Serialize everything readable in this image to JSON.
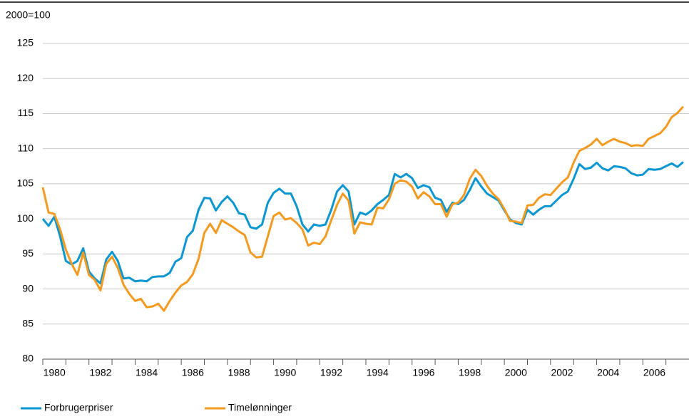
{
  "chart_data": {
    "type": "line",
    "y_label": "2000=100",
    "x": [
      1980,
      1980.25,
      1980.5,
      1980.75,
      1981,
      1981.25,
      1981.5,
      1981.75,
      1982,
      1982.25,
      1982.5,
      1982.75,
      1983,
      1983.25,
      1983.5,
      1983.75,
      1984,
      1984.25,
      1984.5,
      1984.75,
      1985,
      1985.25,
      1985.5,
      1985.75,
      1986,
      1986.25,
      1986.5,
      1986.75,
      1987,
      1987.25,
      1987.5,
      1987.75,
      1988,
      1988.25,
      1988.5,
      1988.75,
      1989,
      1989.25,
      1989.5,
      1989.75,
      1990,
      1990.25,
      1990.5,
      1990.75,
      1991,
      1991.25,
      1991.5,
      1991.75,
      1992,
      1992.25,
      1992.5,
      1992.75,
      1993,
      1993.25,
      1993.5,
      1993.75,
      1994,
      1994.25,
      1994.5,
      1994.75,
      1995,
      1995.25,
      1995.5,
      1995.75,
      1996,
      1996.25,
      1996.5,
      1996.75,
      1997,
      1997.25,
      1997.5,
      1997.75,
      1998,
      1998.25,
      1998.5,
      1998.75,
      1999,
      1999.25,
      1999.5,
      1999.75,
      2000,
      2000.25,
      2000.5,
      2000.75,
      2001,
      2001.25,
      2001.5,
      2001.75,
      2002,
      2002.25,
      2002.5,
      2002.75,
      2003,
      2003.25,
      2003.5,
      2003.75,
      2004,
      2004.25,
      2004.5,
      2004.75,
      2005,
      2005.25,
      2005.5,
      2005.75,
      2006,
      2006.25,
      2006.5,
      2006.75,
      2007,
      2007.25,
      2007.5,
      2007.75
    ],
    "series": [
      {
        "name": "Forbrugerpriser",
        "color": "#0a96d0",
        "values": [
          100,
          99,
          100.3,
          97.5,
          94,
          93.5,
          94,
          95.8,
          92.5,
          91.5,
          90.8,
          94.2,
          95.3,
          94,
          91.5,
          91.6,
          91.1,
          91.2,
          91.1,
          91.7,
          91.8,
          91.8,
          92.3,
          93.9,
          94.4,
          97.4,
          98.3,
          101.3,
          103,
          102.9,
          101.2,
          102.4,
          103.2,
          102.3,
          100.8,
          100.6,
          98.8,
          98.6,
          99.2,
          102.3,
          103.7,
          104.3,
          103.6,
          103.6,
          101.8,
          99.2,
          98.2,
          99.2,
          99,
          99.2,
          101.3,
          103.9,
          104.8,
          103.9,
          99.2,
          100.9,
          100.6,
          101.2,
          102.1,
          102.7,
          103.4,
          106.4,
          105.9,
          106.4,
          105.8,
          104.4,
          104.8,
          104.5,
          103,
          102.7,
          101,
          102.3,
          102.1,
          102.7,
          104.1,
          105.8,
          104.6,
          103.6,
          103.1,
          102.6,
          101.2,
          99.9,
          99.4,
          99.2,
          101.3,
          100.6,
          101.3,
          101.8,
          101.8,
          102.6,
          103.4,
          103.9,
          105.7,
          107.8,
          107.1,
          107.3,
          108,
          107.2,
          106.9,
          107.5,
          107.4,
          107.2,
          106.5,
          106.2,
          106.3,
          107.1,
          107,
          107.1,
          107.5,
          107.9,
          107.4,
          108.1
        ]
      },
      {
        "name": "Timelønninger",
        "color": "#f39a21",
        "values": [
          104.5,
          100.9,
          100.7,
          98.5,
          95.6,
          93.6,
          92,
          95.2,
          92,
          91.3,
          89.8,
          93.6,
          94.6,
          93,
          90.6,
          89.3,
          88.3,
          88.6,
          87.4,
          87.5,
          87.9,
          86.9,
          88.3,
          89.5,
          90.5,
          91,
          92.1,
          94.3,
          98,
          99.3,
          98,
          99.8,
          99.3,
          98.8,
          98.2,
          97.7,
          95.2,
          94.5,
          94.6,
          97.5,
          100.4,
          100.9,
          99.9,
          100.1,
          99.4,
          98.5,
          96.2,
          96.6,
          96.4,
          97.5,
          99.8,
          102,
          103.6,
          102.6,
          97.9,
          99.5,
          99.3,
          99.2,
          101.6,
          101.5,
          102.8,
          105,
          105.5,
          105.3,
          104.6,
          102.9,
          103.8,
          103.2,
          102.1,
          102.1,
          100.3,
          102.1,
          102.3,
          103.4,
          105.7,
          107,
          106.1,
          104.7,
          103.6,
          102.8,
          101.4,
          99.7,
          99.6,
          99.4,
          101.9,
          102,
          103,
          103.5,
          103.4,
          104.3,
          105.2,
          105.9,
          108,
          109.7,
          110.1,
          110.6,
          111.4,
          110.5,
          111,
          111.4,
          111,
          110.8,
          110.4,
          110.5,
          110.4,
          111.4,
          111.8,
          112.2,
          113.1,
          114.5,
          115.1,
          116
        ]
      }
    ],
    "xlim": [
      1980,
      2008
    ],
    "xticks": [
      1980,
      1982,
      1984,
      1986,
      1988,
      1990,
      1992,
      1994,
      1996,
      1998,
      2000,
      2002,
      2004,
      2006
    ],
    "xminor_ticks": [
      1981,
      1983,
      1985,
      1987,
      1989,
      1991,
      1993,
      1995,
      1997,
      1999,
      2001,
      2003,
      2005,
      2007
    ],
    "ylim": [
      80,
      125
    ],
    "yticks": [
      80,
      85,
      90,
      95,
      100,
      105,
      110,
      115,
      120,
      125
    ],
    "grid": true,
    "legend": "bottom"
  }
}
